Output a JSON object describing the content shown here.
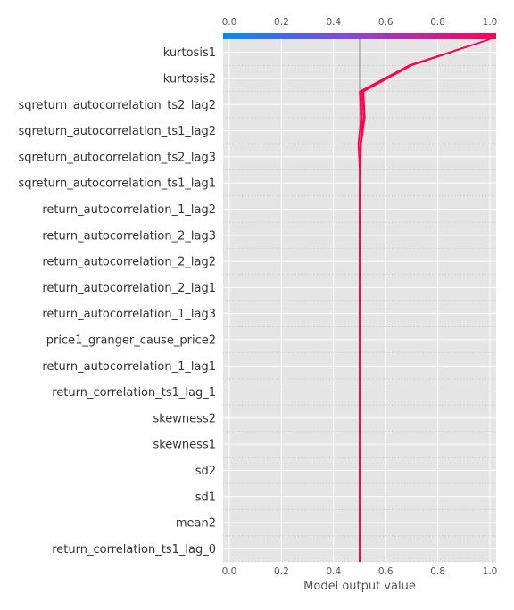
{
  "chart_data": {
    "type": "line",
    "plot": "shap-decision",
    "xlabel": "Model output value",
    "xlim": [
      0.0,
      1.0
    ],
    "xticks": [
      "0.0",
      "0.2",
      "0.4",
      "0.6",
      "0.8",
      "1.0"
    ],
    "tick_values": [
      0.0,
      0.2,
      0.4,
      0.6,
      0.8,
      1.0
    ],
    "base_value": 0.5,
    "grid": true,
    "colorbar": {
      "position": "top",
      "low_color": "#008bfb",
      "mid_color": "#8f42d8",
      "high_color": "#ff0052"
    },
    "features": [
      "kurtosis1",
      "kurtosis2",
      "sqreturn_autocorrelation_ts2_lag2",
      "sqreturn_autocorrelation_ts1_lag2",
      "sqreturn_autocorrelation_ts2_lag3",
      "sqreturn_autocorrelation_ts1_lag1",
      "return_autocorrelation_1_lag2",
      "return_autocorrelation_2_lag3",
      "return_autocorrelation_2_lag2",
      "return_autocorrelation_2_lag1",
      "return_autocorrelation_1_lag3",
      "price1_granger_cause_price2",
      "return_autocorrelation_1_lag1",
      "return_correlation_ts1_lag_1",
      "skewness2",
      "skewness1",
      "sd2",
      "sd1",
      "mean2",
      "return_correlation_ts1_lag_0"
    ],
    "series": [
      {
        "values": [
          1.0,
          0.69,
          0.505,
          0.508,
          0.504,
          0.502,
          0.5,
          0.5,
          0.5,
          0.5,
          0.5,
          0.5,
          0.5,
          0.5,
          0.5,
          0.5,
          0.5,
          0.5,
          0.5,
          0.5,
          0.5
        ]
      },
      {
        "values": [
          1.0,
          0.695,
          0.51,
          0.515,
          0.502,
          0.5,
          0.5,
          0.5,
          0.5,
          0.5,
          0.5,
          0.5,
          0.5,
          0.5,
          0.5,
          0.5,
          0.5,
          0.5,
          0.5,
          0.5,
          0.5
        ]
      },
      {
        "values": [
          1.0,
          0.7,
          0.515,
          0.52,
          0.506,
          0.503,
          0.5,
          0.5,
          0.5,
          0.5,
          0.5,
          0.5,
          0.5,
          0.5,
          0.5,
          0.5,
          0.5,
          0.5,
          0.5,
          0.5,
          0.5
        ]
      },
      {
        "values": [
          1.0,
          0.69,
          0.5,
          0.505,
          0.495,
          0.5,
          0.5,
          0.5,
          0.5,
          0.5,
          0.5,
          0.5,
          0.5,
          0.5,
          0.5,
          0.5,
          0.5,
          0.5,
          0.5,
          0.5,
          0.5
        ]
      }
    ]
  }
}
